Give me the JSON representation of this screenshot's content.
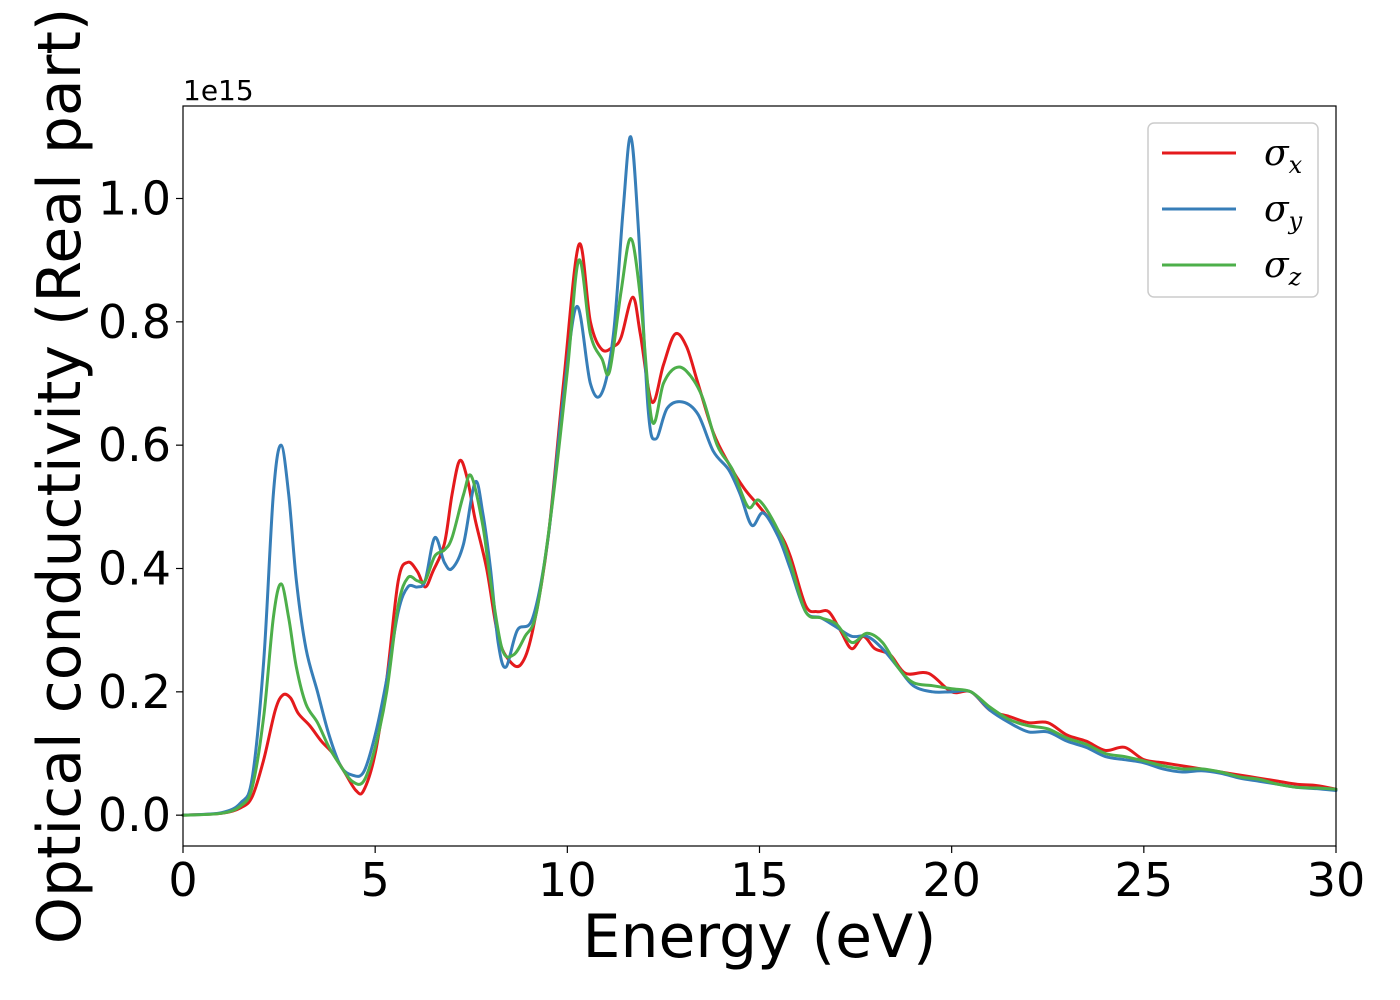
{
  "chart_data": {
    "type": "line",
    "xlabel": "Energy (eV)",
    "ylabel": "Optical conductivity (Real part)",
    "offset_text": "1e15",
    "xlim": [
      0,
      30
    ],
    "ylim": [
      -0.05,
      1.15
    ],
    "xticks": [
      0,
      5,
      10,
      15,
      20,
      25,
      30
    ],
    "yticks": [
      0.0,
      0.2,
      0.4,
      0.6,
      0.8,
      1.0
    ],
    "xtick_labels": [
      "0",
      "5",
      "10",
      "15",
      "20",
      "25",
      "30"
    ],
    "ytick_labels": [
      "0.0",
      "0.2",
      "0.4",
      "0.6",
      "0.8",
      "1.0"
    ],
    "grid": false,
    "legend_position": "top-right",
    "series": [
      {
        "name": "σx",
        "symbol": "σ",
        "subscript": "x",
        "color": "#e41a1c",
        "points": [
          [
            0,
            0
          ],
          [
            1,
            0.003
          ],
          [
            1.5,
            0.012
          ],
          [
            1.8,
            0.03
          ],
          [
            2.1,
            0.09
          ],
          [
            2.4,
            0.17
          ],
          [
            2.6,
            0.195
          ],
          [
            2.8,
            0.19
          ],
          [
            3.0,
            0.165
          ],
          [
            3.3,
            0.145
          ],
          [
            3.6,
            0.12
          ],
          [
            3.9,
            0.1
          ],
          [
            4.2,
            0.07
          ],
          [
            4.5,
            0.04
          ],
          [
            4.7,
            0.04
          ],
          [
            5.0,
            0.1
          ],
          [
            5.3,
            0.22
          ],
          [
            5.6,
            0.38
          ],
          [
            5.85,
            0.41
          ],
          [
            6.1,
            0.395
          ],
          [
            6.3,
            0.37
          ],
          [
            6.5,
            0.395
          ],
          [
            6.8,
            0.44
          ],
          [
            7.0,
            0.52
          ],
          [
            7.2,
            0.575
          ],
          [
            7.4,
            0.545
          ],
          [
            7.6,
            0.48
          ],
          [
            7.9,
            0.4
          ],
          [
            8.2,
            0.29
          ],
          [
            8.5,
            0.25
          ],
          [
            8.8,
            0.245
          ],
          [
            9.1,
            0.3
          ],
          [
            9.5,
            0.45
          ],
          [
            9.9,
            0.7
          ],
          [
            10.3,
            0.925
          ],
          [
            10.6,
            0.8
          ],
          [
            10.9,
            0.755
          ],
          [
            11.2,
            0.76
          ],
          [
            11.4,
            0.775
          ],
          [
            11.7,
            0.84
          ],
          [
            11.9,
            0.78
          ],
          [
            12.2,
            0.67
          ],
          [
            12.5,
            0.73
          ],
          [
            12.8,
            0.78
          ],
          [
            13.1,
            0.76
          ],
          [
            13.4,
            0.7
          ],
          [
            13.8,
            0.62
          ],
          [
            14.2,
            0.57
          ],
          [
            14.6,
            0.53
          ],
          [
            15.0,
            0.5
          ],
          [
            15.5,
            0.46
          ],
          [
            15.8,
            0.42
          ],
          [
            16.2,
            0.34
          ],
          [
            16.5,
            0.33
          ],
          [
            16.8,
            0.33
          ],
          [
            17.1,
            0.3
          ],
          [
            17.4,
            0.27
          ],
          [
            17.7,
            0.29
          ],
          [
            18.0,
            0.27
          ],
          [
            18.4,
            0.26
          ],
          [
            18.8,
            0.23
          ],
          [
            19.4,
            0.23
          ],
          [
            20.0,
            0.2
          ],
          [
            20.5,
            0.2
          ],
          [
            21.0,
            0.17
          ],
          [
            21.5,
            0.16
          ],
          [
            22.0,
            0.15
          ],
          [
            22.5,
            0.15
          ],
          [
            23.0,
            0.13
          ],
          [
            23.5,
            0.12
          ],
          [
            24.0,
            0.105
          ],
          [
            24.5,
            0.11
          ],
          [
            25.0,
            0.09
          ],
          [
            25.5,
            0.085
          ],
          [
            26.0,
            0.08
          ],
          [
            26.5,
            0.075
          ],
          [
            27.0,
            0.07
          ],
          [
            27.5,
            0.065
          ],
          [
            28.0,
            0.06
          ],
          [
            28.5,
            0.055
          ],
          [
            29.0,
            0.05
          ],
          [
            29.5,
            0.048
          ],
          [
            30,
            0.042
          ]
        ]
      },
      {
        "name": "σy",
        "symbol": "σ",
        "subscript": "y",
        "color": "#377eb8",
        "points": [
          [
            0,
            0
          ],
          [
            1,
            0.004
          ],
          [
            1.5,
            0.02
          ],
          [
            1.8,
            0.06
          ],
          [
            2.1,
            0.25
          ],
          [
            2.35,
            0.52
          ],
          [
            2.55,
            0.6
          ],
          [
            2.75,
            0.52
          ],
          [
            2.95,
            0.38
          ],
          [
            3.2,
            0.27
          ],
          [
            3.5,
            0.2
          ],
          [
            3.8,
            0.13
          ],
          [
            4.1,
            0.08
          ],
          [
            4.4,
            0.065
          ],
          [
            4.7,
            0.07
          ],
          [
            5.0,
            0.13
          ],
          [
            5.3,
            0.22
          ],
          [
            5.6,
            0.33
          ],
          [
            5.85,
            0.37
          ],
          [
            6.1,
            0.37
          ],
          [
            6.3,
            0.38
          ],
          [
            6.55,
            0.45
          ],
          [
            6.8,
            0.41
          ],
          [
            7.0,
            0.4
          ],
          [
            7.3,
            0.44
          ],
          [
            7.6,
            0.54
          ],
          [
            7.8,
            0.49
          ],
          [
            8.0,
            0.4
          ],
          [
            8.2,
            0.28
          ],
          [
            8.4,
            0.24
          ],
          [
            8.7,
            0.3
          ],
          [
            9.1,
            0.32
          ],
          [
            9.5,
            0.45
          ],
          [
            9.9,
            0.68
          ],
          [
            10.25,
            0.825
          ],
          [
            10.6,
            0.7
          ],
          [
            10.9,
            0.685
          ],
          [
            11.2,
            0.78
          ],
          [
            11.45,
            0.98
          ],
          [
            11.65,
            1.1
          ],
          [
            11.85,
            0.95
          ],
          [
            12.1,
            0.66
          ],
          [
            12.3,
            0.61
          ],
          [
            12.6,
            0.66
          ],
          [
            13.0,
            0.67
          ],
          [
            13.4,
            0.65
          ],
          [
            13.8,
            0.59
          ],
          [
            14.2,
            0.56
          ],
          [
            14.5,
            0.52
          ],
          [
            14.8,
            0.47
          ],
          [
            15.1,
            0.49
          ],
          [
            15.5,
            0.45
          ],
          [
            15.8,
            0.4
          ],
          [
            16.2,
            0.33
          ],
          [
            16.6,
            0.32
          ],
          [
            17.0,
            0.305
          ],
          [
            17.4,
            0.29
          ],
          [
            17.8,
            0.29
          ],
          [
            18.2,
            0.27
          ],
          [
            18.6,
            0.24
          ],
          [
            19.0,
            0.21
          ],
          [
            19.5,
            0.2
          ],
          [
            20.0,
            0.2
          ],
          [
            20.5,
            0.2
          ],
          [
            21.0,
            0.17
          ],
          [
            21.5,
            0.15
          ],
          [
            22.0,
            0.135
          ],
          [
            22.5,
            0.135
          ],
          [
            23.0,
            0.12
          ],
          [
            23.5,
            0.11
          ],
          [
            24.0,
            0.095
          ],
          [
            24.5,
            0.09
          ],
          [
            25.0,
            0.085
          ],
          [
            25.5,
            0.075
          ],
          [
            26.0,
            0.07
          ],
          [
            26.5,
            0.072
          ],
          [
            27.0,
            0.068
          ],
          [
            27.5,
            0.06
          ],
          [
            28.0,
            0.055
          ],
          [
            28.5,
            0.05
          ],
          [
            29.0,
            0.045
          ],
          [
            29.5,
            0.043
          ],
          [
            30,
            0.04
          ]
        ]
      },
      {
        "name": "σz",
        "symbol": "σ",
        "subscript": "z",
        "color": "#4daf4a",
        "points": [
          [
            0,
            0
          ],
          [
            1,
            0.003
          ],
          [
            1.5,
            0.015
          ],
          [
            1.8,
            0.045
          ],
          [
            2.1,
            0.16
          ],
          [
            2.35,
            0.32
          ],
          [
            2.55,
            0.375
          ],
          [
            2.75,
            0.32
          ],
          [
            2.95,
            0.24
          ],
          [
            3.2,
            0.18
          ],
          [
            3.5,
            0.15
          ],
          [
            3.8,
            0.11
          ],
          [
            4.1,
            0.08
          ],
          [
            4.4,
            0.055
          ],
          [
            4.7,
            0.055
          ],
          [
            5.0,
            0.11
          ],
          [
            5.3,
            0.2
          ],
          [
            5.6,
            0.34
          ],
          [
            5.85,
            0.385
          ],
          [
            6.1,
            0.38
          ],
          [
            6.3,
            0.38
          ],
          [
            6.55,
            0.42
          ],
          [
            6.8,
            0.43
          ],
          [
            7.0,
            0.45
          ],
          [
            7.3,
            0.52
          ],
          [
            7.5,
            0.55
          ],
          [
            7.8,
            0.47
          ],
          [
            8.0,
            0.38
          ],
          [
            8.3,
            0.27
          ],
          [
            8.6,
            0.26
          ],
          [
            8.9,
            0.29
          ],
          [
            9.2,
            0.33
          ],
          [
            9.6,
            0.5
          ],
          [
            10.0,
            0.72
          ],
          [
            10.3,
            0.9
          ],
          [
            10.6,
            0.78
          ],
          [
            10.9,
            0.74
          ],
          [
            11.1,
            0.72
          ],
          [
            11.4,
            0.85
          ],
          [
            11.65,
            0.935
          ],
          [
            11.9,
            0.84
          ],
          [
            12.2,
            0.64
          ],
          [
            12.5,
            0.7
          ],
          [
            12.8,
            0.725
          ],
          [
            13.1,
            0.72
          ],
          [
            13.5,
            0.68
          ],
          [
            13.9,
            0.6
          ],
          [
            14.3,
            0.56
          ],
          [
            14.7,
            0.5
          ],
          [
            15.0,
            0.51
          ],
          [
            15.5,
            0.46
          ],
          [
            15.8,
            0.41
          ],
          [
            16.2,
            0.33
          ],
          [
            16.6,
            0.32
          ],
          [
            17.0,
            0.31
          ],
          [
            17.4,
            0.28
          ],
          [
            17.8,
            0.295
          ],
          [
            18.2,
            0.28
          ],
          [
            18.6,
            0.24
          ],
          [
            19.0,
            0.215
          ],
          [
            19.5,
            0.21
          ],
          [
            20.0,
            0.205
          ],
          [
            20.5,
            0.2
          ],
          [
            21.0,
            0.175
          ],
          [
            21.5,
            0.155
          ],
          [
            22.0,
            0.145
          ],
          [
            22.5,
            0.14
          ],
          [
            23.0,
            0.125
          ],
          [
            23.5,
            0.115
          ],
          [
            24.0,
            0.1
          ],
          [
            24.5,
            0.095
          ],
          [
            25.0,
            0.088
          ],
          [
            25.5,
            0.08
          ],
          [
            26.0,
            0.075
          ],
          [
            26.5,
            0.075
          ],
          [
            27.0,
            0.07
          ],
          [
            27.5,
            0.062
          ],
          [
            28.0,
            0.058
          ],
          [
            28.5,
            0.05
          ],
          [
            29.0,
            0.045
          ],
          [
            29.5,
            0.044
          ],
          [
            30,
            0.042
          ]
        ]
      }
    ]
  }
}
